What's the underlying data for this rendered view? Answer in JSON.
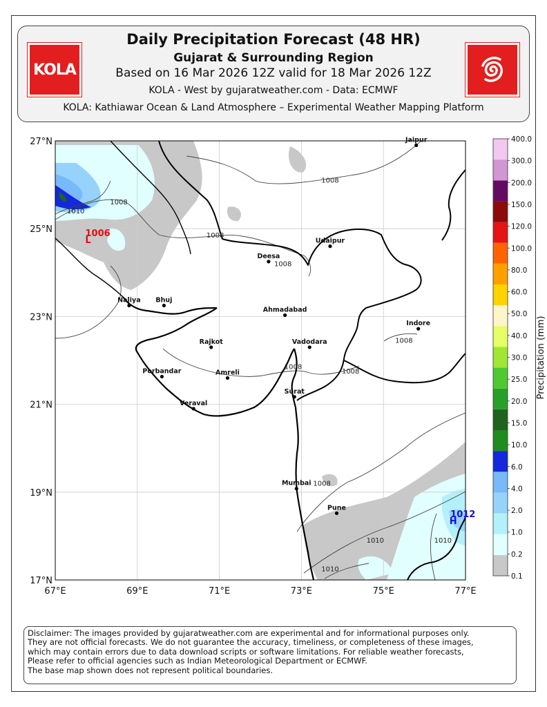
{
  "header": {
    "title": "Daily Precipitation Forecast (48 HR)",
    "subtitle": "Gujarat & Surrounding Region",
    "based_on": "Based on 16 Mar 2026 12Z valid for 18 Mar 2026 12Z",
    "credit": "KOLA - West by gujaratweather.com  -  Data: ECMWF",
    "platform": "KOLA: Kathiawar Ocean & Land Atmosphere – Experimental Weather Mapping Platform",
    "left_logo_text": "KOLA",
    "right_logo_icon": "cyclone-spiral-icon",
    "logo_color": "#e31e1e"
  },
  "map": {
    "lat_labels": [
      "27°N",
      "25°N",
      "23°N",
      "21°N",
      "19°N",
      "17°N"
    ],
    "lon_labels": [
      "67°E",
      "69°E",
      "71°E",
      "73°E",
      "75°E",
      "77°E"
    ],
    "lat_range": [
      17,
      27
    ],
    "lon_range": [
      67,
      77
    ],
    "cities": [
      {
        "name": "Jaipur",
        "lon": 75.8,
        "lat": 26.9
      },
      {
        "name": "Udaipur",
        "lon": 73.7,
        "lat": 24.6
      },
      {
        "name": "Deesa",
        "lon": 72.2,
        "lat": 24.25
      },
      {
        "name": "Naliya",
        "lon": 68.8,
        "lat": 23.25
      },
      {
        "name": "Bhuj",
        "lon": 69.65,
        "lat": 23.25
      },
      {
        "name": "Ahmadabad",
        "lon": 72.6,
        "lat": 23.03
      },
      {
        "name": "Indore",
        "lon": 75.85,
        "lat": 22.72
      },
      {
        "name": "Rajkot",
        "lon": 70.8,
        "lat": 22.3
      },
      {
        "name": "Vadodara",
        "lon": 73.2,
        "lat": 22.3
      },
      {
        "name": "Porbandar",
        "lon": 69.6,
        "lat": 21.63
      },
      {
        "name": "Amreli",
        "lon": 71.2,
        "lat": 21.6
      },
      {
        "name": "Surat",
        "lon": 72.83,
        "lat": 21.17
      },
      {
        "name": "Veraval",
        "lon": 70.37,
        "lat": 20.9
      },
      {
        "name": "Mumbai",
        "lon": 72.88,
        "lat": 19.08
      },
      {
        "name": "Pune",
        "lon": 73.86,
        "lat": 18.52
      }
    ],
    "isobar_labels": [
      {
        "text": "1008",
        "lon": 73.7,
        "lat": 26.05
      },
      {
        "text": "1008",
        "lon": 68.55,
        "lat": 25.55
      },
      {
        "text": "1010",
        "lon": 67.5,
        "lat": 25.35
      },
      {
        "text": "1008",
        "lon": 70.9,
        "lat": 24.8
      },
      {
        "text": "1008",
        "lon": 72.55,
        "lat": 24.15
      },
      {
        "text": "1008",
        "lon": 75.5,
        "lat": 22.4
      },
      {
        "text": "1008",
        "lon": 72.8,
        "lat": 21.8
      },
      {
        "text": "1008",
        "lon": 74.2,
        "lat": 21.7
      },
      {
        "text": "1008",
        "lon": 73.5,
        "lat": 19.15
      },
      {
        "text": "1010",
        "lon": 74.8,
        "lat": 17.85
      },
      {
        "text": "1010",
        "lon": 76.45,
        "lat": 17.85
      },
      {
        "text": "1010",
        "lon": 73.7,
        "lat": 17.2
      }
    ],
    "pressure_centers": [
      {
        "symbol": "L",
        "value": "1006",
        "lon": 67.8,
        "lat": 24.8,
        "color": "#e01010"
      },
      {
        "symbol": "H",
        "value": "1012",
        "lon": 76.7,
        "lat": 18.4,
        "color": "#1010e0"
      }
    ]
  },
  "colorbar": {
    "label": "Precipitation (mm)",
    "levels": [
      "0.1",
      "0.2",
      "1.0",
      "2.0",
      "4.0",
      "6.0",
      "10.0",
      "15.0",
      "20.0",
      "25.0",
      "30.0",
      "40.0",
      "50.0",
      "60.0",
      "80.0",
      "100.0",
      "120.0",
      "150.0",
      "200.0",
      "300.0",
      "400.0"
    ],
    "colors": [
      "#ffffff",
      "#c8c8c8",
      "#e1ffff",
      "#b4f0fa",
      "#96d2fa",
      "#78b9fa",
      "#1428dc",
      "#1e8c1e",
      "#1e641e",
      "#28a028",
      "#50c832",
      "#a0e632",
      "#e6ff64",
      "#fff5c8",
      "#ffd200",
      "#ffa000",
      "#ff6400",
      "#e61414",
      "#8c0a0a",
      "#640a64",
      "#d296d2",
      "#f0c8f0"
    ]
  },
  "disclaimer": [
    "Disclaimer: The images provided by gujaratweather.com are experimental and for informational purposes only.",
    "They are not official forecasts. We do not guarantee the accuracy, timeliness, or completeness of these images,",
    "which may contain errors due to data download scripts or software limitations. For reliable weather forecasts,",
    "Please refer to official agencies such as Indian Meteorological Department or ECMWF.",
    "The base map shown does not represent political boundaries."
  ]
}
